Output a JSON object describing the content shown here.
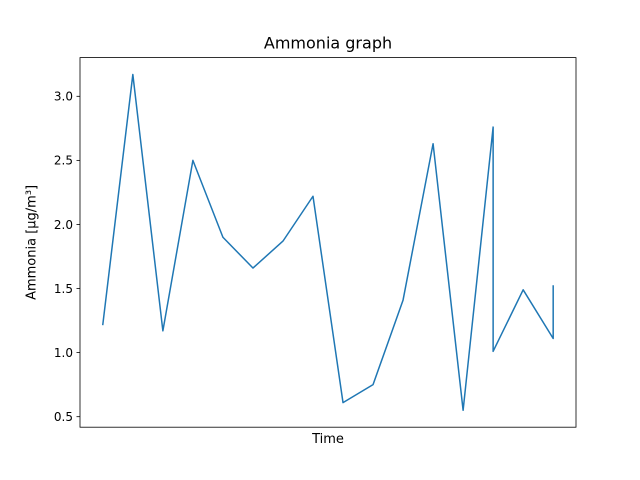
{
  "chart_data": {
    "type": "line",
    "title": "Ammonia graph",
    "xlabel": "Time",
    "ylabel": "Ammonia [μg/m³]",
    "ylim": [
      0.418,
      3.302
    ],
    "grid": false,
    "legend": false,
    "y_ticks": [
      {
        "value": 0.5,
        "label": "0.5"
      },
      {
        "value": 1.0,
        "label": "1.0"
      },
      {
        "value": 1.5,
        "label": "1.5"
      },
      {
        "value": 2.0,
        "label": "2.0"
      },
      {
        "value": 2.5,
        "label": "2.5"
      },
      {
        "value": 3.0,
        "label": "3.0"
      }
    ],
    "x": [
      0,
      1,
      2,
      3,
      4,
      5,
      6,
      7,
      8,
      9,
      10,
      11,
      12,
      13,
      13,
      14,
      15,
      15
    ],
    "xlim": [
      -0.76,
      15.76
    ],
    "series": [
      {
        "color": "#1f77b4",
        "values": [
          1.22,
          3.17,
          1.17,
          2.5,
          1.9,
          1.66,
          1.87,
          2.22,
          0.61,
          0.75,
          1.41,
          2.63,
          0.55,
          2.76,
          1.01,
          1.49,
          1.11,
          1.52
        ]
      }
    ]
  }
}
